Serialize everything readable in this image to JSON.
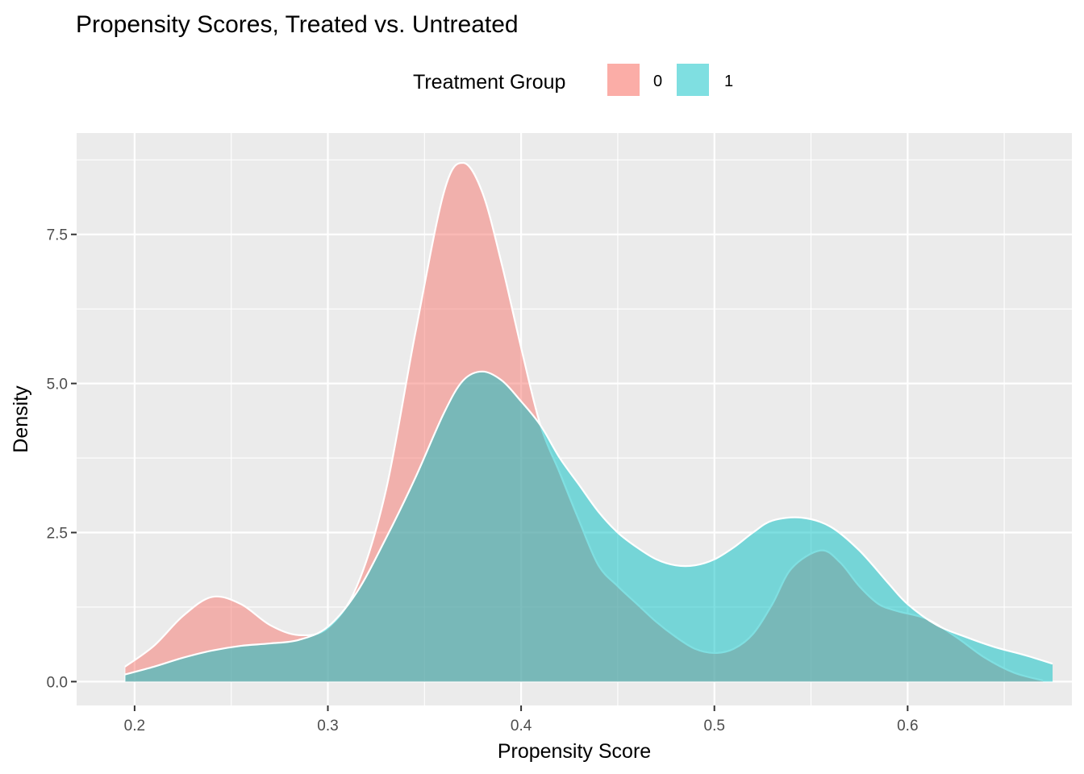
{
  "chart_data": {
    "type": "area",
    "title": "Propensity Scores, Treated vs. Untreated",
    "xlabel": "Propensity Score",
    "ylabel": "Density",
    "xlim": [
      0.17,
      0.685
    ],
    "ylim": [
      -0.4,
      9.2
    ],
    "x_ticks": [
      0.2,
      0.3,
      0.4,
      0.5,
      0.6
    ],
    "x_tick_labels": [
      "0.2",
      "0.3",
      "0.4",
      "0.5",
      "0.6"
    ],
    "y_ticks": [
      0,
      2.5,
      5,
      7.5
    ],
    "y_tick_labels": [
      "0.0",
      "2.5",
      "5.0",
      "7.5"
    ],
    "grid": true,
    "legend": {
      "title": "Treatment Group",
      "position": "top"
    },
    "series": [
      {
        "name": "0",
        "color": "#F8766D",
        "points": [
          [
            0.195,
            0.25
          ],
          [
            0.21,
            0.6
          ],
          [
            0.225,
            1.1
          ],
          [
            0.24,
            1.42
          ],
          [
            0.255,
            1.3
          ],
          [
            0.27,
            0.95
          ],
          [
            0.285,
            0.78
          ],
          [
            0.3,
            0.9
          ],
          [
            0.315,
            1.6
          ],
          [
            0.33,
            3.2
          ],
          [
            0.345,
            5.8
          ],
          [
            0.36,
            8.2
          ],
          [
            0.37,
            8.7
          ],
          [
            0.38,
            8.2
          ],
          [
            0.39,
            7.0
          ],
          [
            0.4,
            5.6
          ],
          [
            0.41,
            4.3
          ],
          [
            0.42,
            3.5
          ],
          [
            0.43,
            2.7
          ],
          [
            0.44,
            1.95
          ],
          [
            0.45,
            1.6
          ],
          [
            0.46,
            1.3
          ],
          [
            0.47,
            1.0
          ],
          [
            0.48,
            0.75
          ],
          [
            0.49,
            0.55
          ],
          [
            0.5,
            0.48
          ],
          [
            0.51,
            0.55
          ],
          [
            0.52,
            0.8
          ],
          [
            0.53,
            1.3
          ],
          [
            0.54,
            1.9
          ],
          [
            0.555,
            2.2
          ],
          [
            0.565,
            2.0
          ],
          [
            0.575,
            1.6
          ],
          [
            0.585,
            1.3
          ],
          [
            0.595,
            1.18
          ],
          [
            0.61,
            1.05
          ],
          [
            0.625,
            0.75
          ],
          [
            0.64,
            0.4
          ],
          [
            0.655,
            0.15
          ],
          [
            0.67,
            0.02
          ]
        ]
      },
      {
        "name": "1",
        "color": "#00BFC4",
        "points": [
          [
            0.195,
            0.12
          ],
          [
            0.21,
            0.25
          ],
          [
            0.225,
            0.4
          ],
          [
            0.24,
            0.52
          ],
          [
            0.255,
            0.6
          ],
          [
            0.27,
            0.64
          ],
          [
            0.285,
            0.7
          ],
          [
            0.3,
            0.92
          ],
          [
            0.315,
            1.5
          ],
          [
            0.33,
            2.4
          ],
          [
            0.345,
            3.4
          ],
          [
            0.36,
            4.5
          ],
          [
            0.37,
            5.05
          ],
          [
            0.38,
            5.2
          ],
          [
            0.39,
            5.05
          ],
          [
            0.4,
            4.7
          ],
          [
            0.41,
            4.3
          ],
          [
            0.42,
            3.75
          ],
          [
            0.43,
            3.3
          ],
          [
            0.44,
            2.85
          ],
          [
            0.45,
            2.5
          ],
          [
            0.46,
            2.25
          ],
          [
            0.47,
            2.05
          ],
          [
            0.48,
            1.95
          ],
          [
            0.49,
            1.95
          ],
          [
            0.5,
            2.05
          ],
          [
            0.51,
            2.25
          ],
          [
            0.52,
            2.5
          ],
          [
            0.53,
            2.7
          ],
          [
            0.545,
            2.75
          ],
          [
            0.56,
            2.6
          ],
          [
            0.575,
            2.2
          ],
          [
            0.59,
            1.65
          ],
          [
            0.6,
            1.3
          ],
          [
            0.615,
            0.95
          ],
          [
            0.63,
            0.75
          ],
          [
            0.645,
            0.58
          ],
          [
            0.66,
            0.45
          ],
          [
            0.675,
            0.3
          ]
        ]
      }
    ]
  }
}
